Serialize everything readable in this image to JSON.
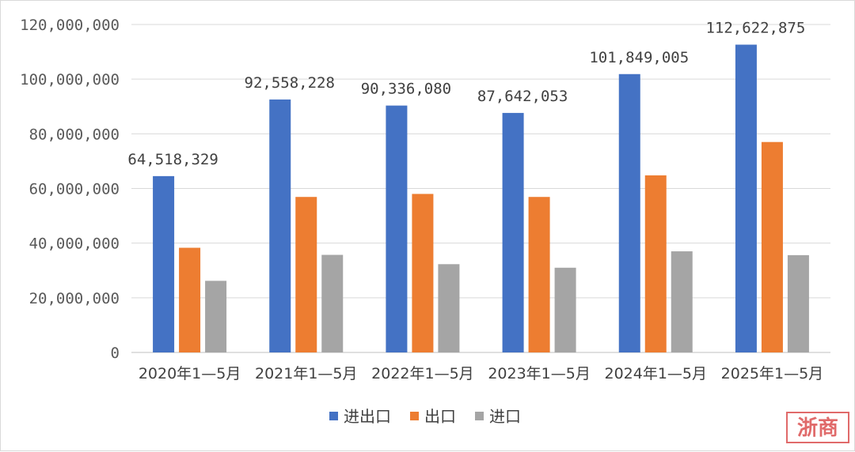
{
  "chart_data": {
    "type": "bar",
    "title": "",
    "xlabel": "",
    "ylabel": "",
    "categories": [
      "2020年1—5月",
      "2021年1—5月",
      "2022年1—5月",
      "2023年1—5月",
      "2024年1—5月",
      "2025年1—5月"
    ],
    "series": [
      {
        "name": "进出口",
        "color": "#4472c4",
        "values": [
          64518329,
          92558228,
          90336080,
          87642053,
          101849005,
          112622875
        ]
      },
      {
        "name": "出口",
        "color": "#ed7d31",
        "values": [
          38300000,
          56900000,
          58000000,
          56900000,
          64800000,
          77000000
        ]
      },
      {
        "name": "进口",
        "color": "#a5a5a5",
        "values": [
          26200000,
          35700000,
          32300000,
          31000000,
          37000000,
          35600000
        ]
      }
    ],
    "data_labels": [
      "64,518,329",
      "92,558,228",
      "90,336,080",
      "87,642,053",
      "101,849,005",
      "112,622,875"
    ],
    "ylim": [
      0,
      120000000
    ],
    "yticks": [
      0,
      20000000,
      40000000,
      60000000,
      80000000,
      100000000,
      120000000
    ],
    "ytick_labels": [
      "0",
      "20,000,000",
      "40,000,000",
      "60,000,000",
      "80,000,000",
      "100,000,000",
      "120,000,000"
    ],
    "grid": true,
    "legend_position": "bottom-center"
  },
  "watermark": {
    "text": "浙商",
    "color": "#e06a6a"
  }
}
